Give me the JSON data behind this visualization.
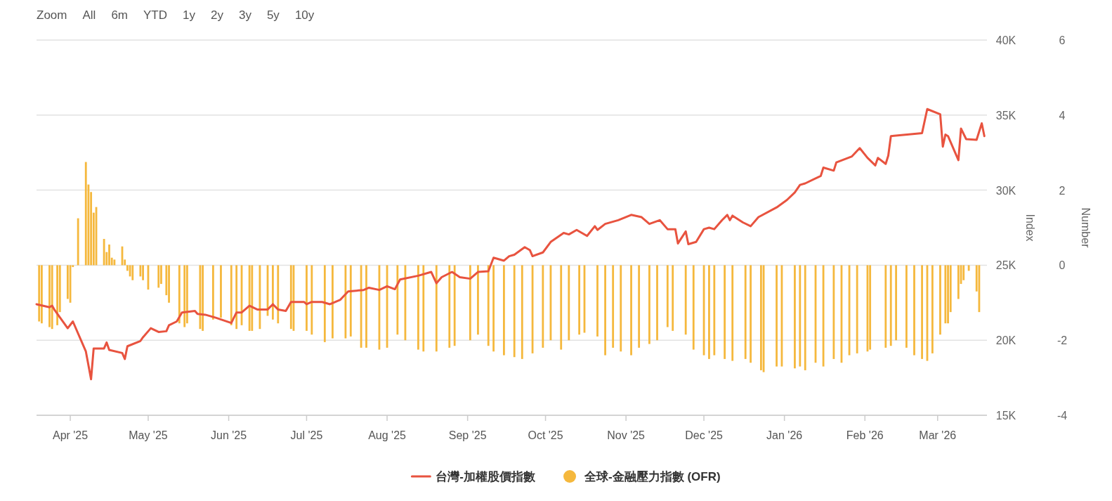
{
  "chart_data": {
    "type": "line",
    "annotations": [
      "Zoom",
      "All",
      "6m",
      "YTD",
      "1y",
      "2y",
      "3y",
      "5y",
      "10y"
    ],
    "ylabel": "Index",
    "y2label": "Number",
    "xlim": [
      "2025-03-19",
      "2026-03-20"
    ],
    "xticks": [
      {
        "value": "2025-04-01",
        "label": "Apr '25"
      },
      {
        "value": "2025-05-01",
        "label": "May '25"
      },
      {
        "value": "2025-06-01",
        "label": "Jun '25"
      },
      {
        "value": "2025-07-01",
        "label": "Jul '25"
      },
      {
        "value": "2025-08-01",
        "label": "Aug '25"
      },
      {
        "value": "2025-09-01",
        "label": "Sep '25"
      },
      {
        "value": "2025-10-01",
        "label": "Oct '25"
      },
      {
        "value": "2025-11-01",
        "label": "Nov '25"
      },
      {
        "value": "2025-12-01",
        "label": "Dec '25"
      },
      {
        "value": "2026-01-01",
        "label": "Jan '26"
      },
      {
        "value": "2026-02-01",
        "label": "Feb '26"
      },
      {
        "value": "2026-03-01",
        "label": "Mar '26"
      }
    ],
    "ylim": [
      15000,
      40000
    ],
    "yticks": [
      {
        "value": 15000,
        "label": "15K"
      },
      {
        "value": 20000,
        "label": "20K"
      },
      {
        "value": 25000,
        "label": "25K"
      },
      {
        "value": 30000,
        "label": "30K"
      },
      {
        "value": 35000,
        "label": "35K"
      },
      {
        "value": 40000,
        "label": "40K"
      }
    ],
    "y2lim": [
      -4,
      6
    ],
    "y2ticks": [
      -4,
      -2,
      0,
      2,
      4,
      6
    ],
    "grid": "y",
    "legend": "bottom",
    "series": [
      {
        "name": "台灣-加權股價指數",
        "color": "#e8533f",
        "marker": "none",
        "x": [
          "2025-03-19",
          "2025-03-24",
          "2025-03-25",
          "2025-03-26",
          "2025-03-31",
          "2025-04-02",
          "2025-04-07",
          "2025-04-09",
          "2025-04-10",
          "2025-04-14",
          "2025-04-15",
          "2025-04-16",
          "2025-04-21",
          "2025-04-22",
          "2025-04-23",
          "2025-04-28",
          "2025-04-29",
          "2025-05-02",
          "2025-05-05",
          "2025-05-08",
          "2025-05-09",
          "2025-05-12",
          "2025-05-14",
          "2025-05-19",
          "2025-05-20",
          "2025-05-23",
          "2025-05-27",
          "2025-06-02",
          "2025-06-03",
          "2025-06-04",
          "2025-06-06",
          "2025-06-09",
          "2025-06-12",
          "2025-06-16",
          "2025-06-18",
          "2025-06-20",
          "2025-06-23",
          "2025-06-25",
          "2025-06-30",
          "2025-07-01",
          "2025-07-03",
          "2025-07-07",
          "2025-07-10",
          "2025-07-14",
          "2025-07-17",
          "2025-07-23",
          "2025-07-25",
          "2025-07-29",
          "2025-08-01",
          "2025-08-04",
          "2025-08-06",
          "2025-08-13",
          "2025-08-18",
          "2025-08-20",
          "2025-08-22",
          "2025-08-26",
          "2025-08-29",
          "2025-09-02",
          "2025-09-05",
          "2025-09-09",
          "2025-09-11",
          "2025-09-15",
          "2025-09-17",
          "2025-09-19",
          "2025-09-23",
          "2025-09-25",
          "2025-09-26",
          "2025-09-30",
          "2025-10-03",
          "2025-10-08",
          "2025-10-10",
          "2025-10-13",
          "2025-10-17",
          "2025-10-20",
          "2025-10-21",
          "2025-10-24",
          "2025-10-29",
          "2025-11-03",
          "2025-11-07",
          "2025-11-10",
          "2025-11-14",
          "2025-11-17",
          "2025-11-20",
          "2025-11-21",
          "2025-11-24",
          "2025-11-25",
          "2025-11-28",
          "2025-12-01",
          "2025-12-03",
          "2025-12-05",
          "2025-12-08",
          "2025-12-10",
          "2025-12-11",
          "2025-12-12",
          "2025-12-16",
          "2025-12-19",
          "2025-12-22",
          "2025-12-29",
          "2026-01-02",
          "2026-01-05",
          "2026-01-07",
          "2026-01-09",
          "2026-01-15",
          "2026-01-16",
          "2026-01-20",
          "2026-01-21",
          "2026-01-27",
          "2026-01-30",
          "2026-02-02",
          "2026-02-05",
          "2026-02-06",
          "2026-02-09",
          "2026-02-10",
          "2026-02-11",
          "2026-02-23",
          "2026-02-25",
          "2026-03-02",
          "2026-03-03",
          "2026-03-04",
          "2026-03-05",
          "2026-03-09",
          "2026-03-10",
          "2026-03-12",
          "2026-03-16",
          "2026-03-18",
          "2026-03-19"
        ],
        "values": [
          22400,
          22200,
          22300,
          22000,
          20800,
          21250,
          19250,
          17400,
          19450,
          19450,
          19850,
          19350,
          19150,
          18750,
          19600,
          19950,
          20200,
          20800,
          20550,
          20600,
          21000,
          21250,
          21850,
          21950,
          21750,
          21700,
          21500,
          21150,
          21500,
          21850,
          21850,
          22300,
          22050,
          22050,
          22400,
          22050,
          21950,
          22550,
          22550,
          22400,
          22550,
          22550,
          22400,
          22700,
          23250,
          23350,
          23500,
          23350,
          23600,
          23400,
          24050,
          24300,
          24550,
          23800,
          24200,
          24550,
          24200,
          24100,
          24550,
          24600,
          25500,
          25300,
          25600,
          25700,
          26200,
          26000,
          25600,
          25850,
          26550,
          27150,
          27050,
          27350,
          26950,
          27600,
          27350,
          27750,
          28000,
          28350,
          28200,
          27750,
          28000,
          27400,
          27400,
          26450,
          27250,
          26400,
          26550,
          27400,
          27500,
          27400,
          28000,
          28350,
          28000,
          28300,
          27850,
          27600,
          28200,
          28850,
          29350,
          29850,
          30350,
          30450,
          30950,
          31500,
          31300,
          31850,
          32250,
          32800,
          32150,
          31650,
          32150,
          31750,
          32300,
          33600,
          33800,
          35400,
          35050,
          32900,
          33700,
          33600,
          32000,
          34100,
          33400,
          33350,
          34450,
          33600
        ]
      },
      {
        "name": "全球-金融壓力指數 (OFR)",
        "type": "bar",
        "axis": "y2",
        "color": "#f5b83d",
        "x": [
          "2025-03-20",
          "2025-03-21",
          "2025-03-24",
          "2025-03-25",
          "2025-03-27",
          "2025-03-28",
          "2025-03-31",
          "2025-04-01",
          "2025-04-02",
          "2025-04-04",
          "2025-04-07",
          "2025-04-08",
          "2025-04-09",
          "2025-04-10",
          "2025-04-11",
          "2025-04-14",
          "2025-04-15",
          "2025-04-16",
          "2025-04-17",
          "2025-04-18",
          "2025-04-21",
          "2025-04-22",
          "2025-04-23",
          "2025-04-24",
          "2025-04-25",
          "2025-04-28",
          "2025-04-29",
          "2025-05-01",
          "2025-05-05",
          "2025-05-06",
          "2025-05-08",
          "2025-05-09",
          "2025-05-13",
          "2025-05-15",
          "2025-05-16",
          "2025-05-21",
          "2025-05-22",
          "2025-05-26",
          "2025-05-29",
          "2025-06-02",
          "2025-06-04",
          "2025-06-06",
          "2025-06-09",
          "2025-06-10",
          "2025-06-13",
          "2025-06-16",
          "2025-06-18",
          "2025-06-20",
          "2025-06-25",
          "2025-06-26",
          "2025-07-01",
          "2025-07-03",
          "2025-07-08",
          "2025-07-11",
          "2025-07-16",
          "2025-07-18",
          "2025-07-22",
          "2025-07-24",
          "2025-07-29",
          "2025-08-01",
          "2025-08-05",
          "2025-08-08",
          "2025-08-13",
          "2025-08-15",
          "2025-08-20",
          "2025-08-25",
          "2025-08-27",
          "2025-09-02",
          "2025-09-05",
          "2025-09-09",
          "2025-09-11",
          "2025-09-15",
          "2025-09-19",
          "2025-09-22",
          "2025-09-26",
          "2025-09-30",
          "2025-10-03",
          "2025-10-07",
          "2025-10-10",
          "2025-10-14",
          "2025-10-16",
          "2025-10-21",
          "2025-10-24",
          "2025-10-27",
          "2025-10-30",
          "2025-11-03",
          "2025-11-06",
          "2025-11-10",
          "2025-11-13",
          "2025-11-17",
          "2025-11-19",
          "2025-11-24",
          "2025-11-27",
          "2025-12-01",
          "2025-12-03",
          "2025-12-05",
          "2025-12-09",
          "2025-12-12",
          "2025-12-17",
          "2025-12-19",
          "2025-12-23",
          "2025-12-24",
          "2025-12-29",
          "2025-12-31",
          "2026-01-05",
          "2026-01-07",
          "2026-01-09",
          "2026-01-13",
          "2026-01-16",
          "2026-01-20",
          "2026-01-23",
          "2026-01-26",
          "2026-01-29",
          "2026-02-02",
          "2026-02-03",
          "2026-02-09",
          "2026-02-11",
          "2026-02-13",
          "2026-02-17",
          "2026-02-20",
          "2026-02-23",
          "2026-02-25",
          "2026-02-27",
          "2026-03-02",
          "2026-03-04",
          "2026-03-05",
          "2026-03-06",
          "2026-03-09",
          "2026-03-10",
          "2026-03-11",
          "2026-03-13",
          "2026-03-16",
          "2026-03-17"
        ],
        "values": [
          -1.5,
          -1.55,
          -1.65,
          -1.7,
          -1.6,
          -1.25,
          -0.9,
          -1.0,
          -0.05,
          1.25,
          2.75,
          2.15,
          1.95,
          1.4,
          1.55,
          0.7,
          0.35,
          0.55,
          0.2,
          0.15,
          0.5,
          0.15,
          -0.15,
          -0.3,
          -0.4,
          -0.3,
          -0.4,
          -0.65,
          -0.6,
          -0.5,
          -0.8,
          -1.0,
          -1.55,
          -1.65,
          -1.55,
          -1.7,
          -1.75,
          -1.45,
          -1.4,
          -1.6,
          -1.7,
          -1.6,
          -1.75,
          -1.75,
          -1.7,
          -1.35,
          -1.45,
          -1.55,
          -1.7,
          -1.75,
          -1.75,
          -1.85,
          -2.05,
          -1.95,
          -1.95,
          -1.9,
          -2.2,
          -2.2,
          -2.25,
          -2.2,
          -1.85,
          -2.0,
          -2.25,
          -2.3,
          -2.3,
          -2.2,
          -2.15,
          -2.0,
          -1.85,
          -2.15,
          -2.3,
          -2.4,
          -2.45,
          -2.5,
          -2.35,
          -2.2,
          -2.0,
          -2.25,
          -2.0,
          -1.85,
          -1.8,
          -1.9,
          -2.4,
          -2.2,
          -2.3,
          -2.4,
          -2.2,
          -2.1,
          -2.0,
          -1.65,
          -1.75,
          -1.85,
          -2.25,
          -2.4,
          -2.5,
          -2.4,
          -2.5,
          -2.55,
          -2.5,
          -2.6,
          -2.8,
          -2.85,
          -2.7,
          -2.7,
          -2.75,
          -2.7,
          -2.8,
          -2.6,
          -2.7,
          -2.5,
          -2.6,
          -2.4,
          -2.35,
          -2.3,
          -2.25,
          -2.2,
          -2.15,
          -2.0,
          -2.2,
          -2.4,
          -2.5,
          -2.55,
          -2.35,
          -1.85,
          -1.55,
          -1.55,
          -1.25,
          -0.9,
          -0.5,
          -0.4,
          -0.15,
          -0.7,
          -1.25
        ]
      }
    ]
  }
}
